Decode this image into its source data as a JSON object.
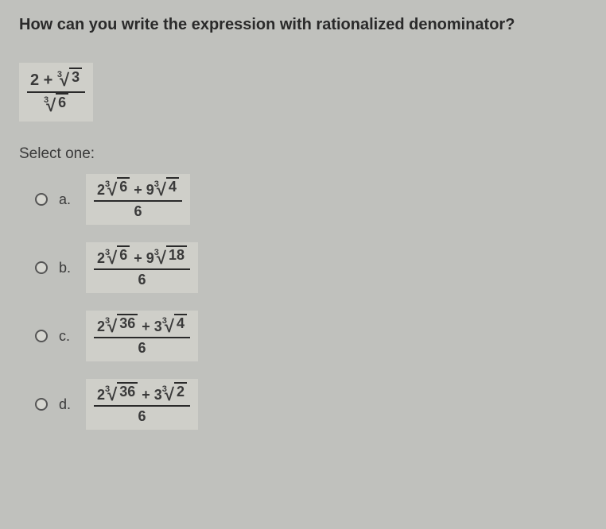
{
  "question": "How can you write the expression with rationalized denominator?",
  "expression": {
    "num_plain": "2 + ",
    "num_root_index": "3",
    "num_root_radicand": "3",
    "den_root_index": "3",
    "den_root_radicand": "6"
  },
  "select_label": "Select one:",
  "options": [
    {
      "letter": "a.",
      "t1_coef": "2",
      "t1_index": "3",
      "t1_rad": "6",
      "plus": " + ",
      "t2_coef": "9",
      "t2_index": "3",
      "t2_rad": "4",
      "den": "6"
    },
    {
      "letter": "b.",
      "t1_coef": "2",
      "t1_index": "3",
      "t1_rad": "6",
      "plus": " + ",
      "t2_coef": "9",
      "t2_index": "3",
      "t2_rad": "18",
      "den": "6"
    },
    {
      "letter": "c.",
      "t1_coef": "2",
      "t1_index": "3",
      "t1_rad": "36",
      "plus": " + ",
      "t2_coef": "3",
      "t2_index": "3",
      "t2_rad": "4",
      "den": "6"
    },
    {
      "letter": "d.",
      "t1_coef": "2",
      "t1_index": "3",
      "t1_rad": "36",
      "plus": " + ",
      "t2_coef": "3",
      "t2_index": "3",
      "t2_rad": "2",
      "den": "6"
    }
  ],
  "colors": {
    "background": "#c0c1bd",
    "box_bg": "#cfcfc9",
    "text": "#2a2a2a"
  }
}
